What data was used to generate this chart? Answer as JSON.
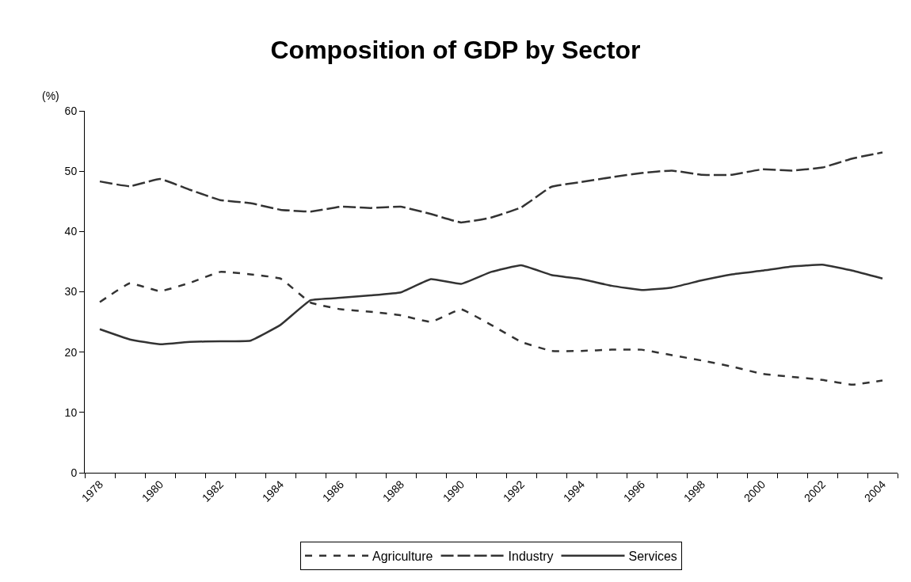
{
  "chart_data": {
    "type": "line",
    "title": "Composition of GDP by Sector",
    "ylabel": "(%)",
    "categories": [
      "1978",
      null,
      "1980",
      null,
      "1982",
      null,
      "1984",
      null,
      "1986",
      null,
      "1988",
      null,
      "1990",
      null,
      "1992",
      null,
      "1994",
      null,
      "1996",
      null,
      "1998",
      null,
      "2000",
      null,
      "2002",
      null,
      "2004"
    ],
    "series": [
      {
        "name": "Agriculture",
        "color": "#333333",
        "line_style": "dotted",
        "values": [
          28.3,
          31.4,
          30.1,
          31.5,
          33.3,
          32.9,
          32.2,
          28.2,
          27.1,
          26.7,
          26.1,
          25.0,
          27.1,
          24.5,
          21.7,
          20.2,
          20.2,
          20.4,
          20.4,
          19.5,
          18.6,
          17.6,
          16.4,
          15.9,
          15.4,
          14.6,
          15.3
        ]
      },
      {
        "name": "Industry",
        "color": "#333333",
        "line_style": "dashed",
        "values": [
          48.3,
          47.5,
          48.7,
          46.9,
          45.2,
          44.7,
          43.6,
          43.3,
          44.1,
          43.9,
          44.1,
          42.9,
          41.5,
          42.3,
          44.0,
          47.4,
          48.2,
          49.0,
          49.7,
          50.1,
          49.4,
          49.4,
          50.3,
          50.1,
          50.6,
          52.1,
          53.1
        ]
      },
      {
        "name": "Services",
        "color": "#333333",
        "line_style": "solid",
        "values": [
          23.8,
          22.1,
          21.3,
          21.7,
          21.8,
          21.9,
          24.5,
          28.6,
          29.0,
          29.4,
          29.9,
          32.1,
          31.3,
          33.3,
          34.4,
          32.8,
          32.1,
          31.0,
          30.3,
          30.7,
          31.9,
          32.9,
          33.5,
          34.2,
          34.5,
          33.5,
          32.2
        ]
      }
    ],
    "ylim": [
      0,
      60
    ],
    "yticks": [
      0,
      10,
      20,
      30,
      40,
      50,
      60
    ],
    "legend": "bottom",
    "marker": "none"
  }
}
